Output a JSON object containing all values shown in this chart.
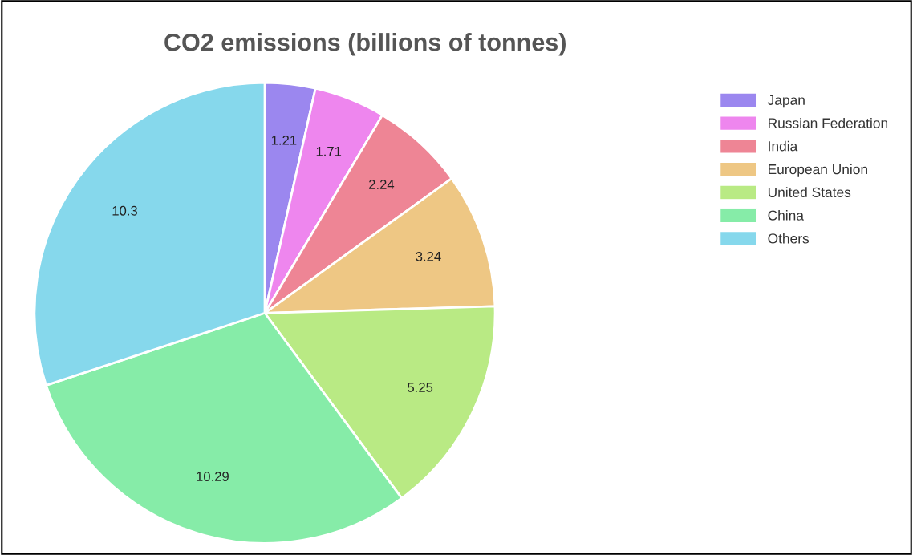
{
  "chart_data": {
    "type": "pie",
    "title": "CO2 emissions (billions of tonnes)",
    "categories": [
      "Japan",
      "Russian Federation",
      "India",
      "European Union",
      "United States",
      "China",
      "Others"
    ],
    "values": [
      1.21,
      1.71,
      2.24,
      3.24,
      5.25,
      10.29,
      10.3
    ],
    "colors": [
      "#9b87ef",
      "#ee86ee",
      "#ee8595",
      "#eec784",
      "#b9ea84",
      "#86eca8",
      "#86d8ec"
    ],
    "data_labels": true,
    "legend": "top right"
  }
}
